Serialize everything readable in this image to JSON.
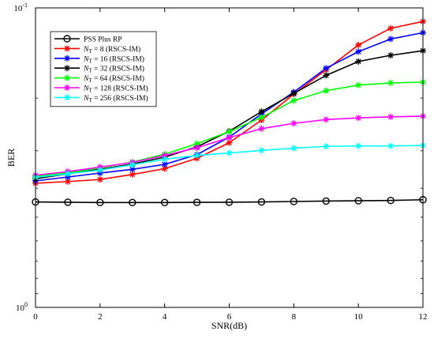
{
  "chart_data": {
    "type": "line",
    "xlabel": "SNR(dB)",
    "ylabel": "BER",
    "xlim": [
      0,
      12
    ],
    "ylim": [
      1,
      0.1
    ],
    "y_scale": "log",
    "x_ticks": [
      0,
      2,
      4,
      6,
      8,
      10,
      12
    ],
    "x_tick_labels": [
      "0",
      "2",
      "4",
      "6",
      "8",
      "10",
      "12"
    ],
    "y_tick_labels": [
      {
        "value": 0.1,
        "base": "10",
        "exp": "-1"
      },
      {
        "value": 1,
        "base": "10",
        "exp": "0"
      }
    ],
    "grid": false,
    "legend_position": "top-left",
    "x": [
      0,
      1,
      2,
      3,
      4,
      5,
      6,
      7,
      8,
      9,
      10,
      11,
      12
    ],
    "series": [
      {
        "name": "PSS Plus RP",
        "label_parts": [
          {
            "t": "PSS Plus RP"
          }
        ],
        "color": "#000000",
        "marker": "circle",
        "values": [
          0.4445,
          0.4455,
          0.4465,
          0.4465,
          0.4465,
          0.446,
          0.4455,
          0.4445,
          0.443,
          0.4415,
          0.4405,
          0.4395,
          0.437
        ]
      },
      {
        "name": "N_T = 8 (RSCS-IM)",
        "label_parts": [
          {
            "t": "N"
          },
          {
            "t": "T",
            "sub": true
          },
          {
            "t": " = 8 (RSCS-IM)"
          }
        ],
        "color": "#ff0000",
        "marker": "star",
        "values": [
          0.385,
          0.38,
          0.374,
          0.36,
          0.344,
          0.318,
          0.282,
          0.237,
          0.194,
          0.161,
          0.133,
          0.117,
          0.111
        ]
      },
      {
        "name": "N_T = 16 (RSCS-IM)",
        "label_parts": [
          {
            "t": "N"
          },
          {
            "t": "T",
            "sub": true
          },
          {
            "t": " = 16 (RSCS-IM)"
          }
        ],
        "color": "#0000ff",
        "marker": "star",
        "values": [
          0.378,
          0.367,
          0.356,
          0.346,
          0.333,
          0.309,
          0.27,
          0.226,
          0.191,
          0.159,
          0.14,
          0.127,
          0.121
        ]
      },
      {
        "name": "N_T = 32 (RSCS-IM)",
        "label_parts": [
          {
            "t": "N"
          },
          {
            "t": "T",
            "sub": true
          },
          {
            "t": " = 32 (RSCS-IM)"
          }
        ],
        "color": "#000000",
        "marker": "star",
        "values": [
          0.372,
          0.358,
          0.346,
          0.332,
          0.315,
          0.291,
          0.258,
          0.222,
          0.193,
          0.168,
          0.151,
          0.144,
          0.139
        ]
      },
      {
        "name": "N_T = 64 (RSCS-IM)",
        "label_parts": [
          {
            "t": "N"
          },
          {
            "t": "T",
            "sub": true
          },
          {
            "t": " = 64 (RSCS-IM)"
          }
        ],
        "color": "#00ff00",
        "marker": "star",
        "values": [
          0.365,
          0.355,
          0.342,
          0.327,
          0.308,
          0.284,
          0.259,
          0.232,
          0.204,
          0.189,
          0.181,
          0.178,
          0.177
        ]
      },
      {
        "name": "N_T = 128 (RSCS-IM)",
        "label_parts": [
          {
            "t": "N"
          },
          {
            "t": "T",
            "sub": true
          },
          {
            "t": " = 128 (RSCS-IM)"
          }
        ],
        "color": "#ff00ff",
        "marker": "star",
        "values": [
          0.362,
          0.352,
          0.34,
          0.328,
          0.311,
          0.293,
          0.271,
          0.253,
          0.243,
          0.236,
          0.233,
          0.231,
          0.23
        ]
      },
      {
        "name": "N_T = 256 (RSCS-IM)",
        "label_parts": [
          {
            "t": "N"
          },
          {
            "t": "T",
            "sub": true
          },
          {
            "t": " = 256 (RSCS-IM)"
          }
        ],
        "color": "#00ffff",
        "marker": "star",
        "values": [
          0.368,
          0.358,
          0.348,
          0.334,
          0.32,
          0.311,
          0.305,
          0.299,
          0.294,
          0.29,
          0.289,
          0.289,
          0.288
        ]
      }
    ]
  }
}
